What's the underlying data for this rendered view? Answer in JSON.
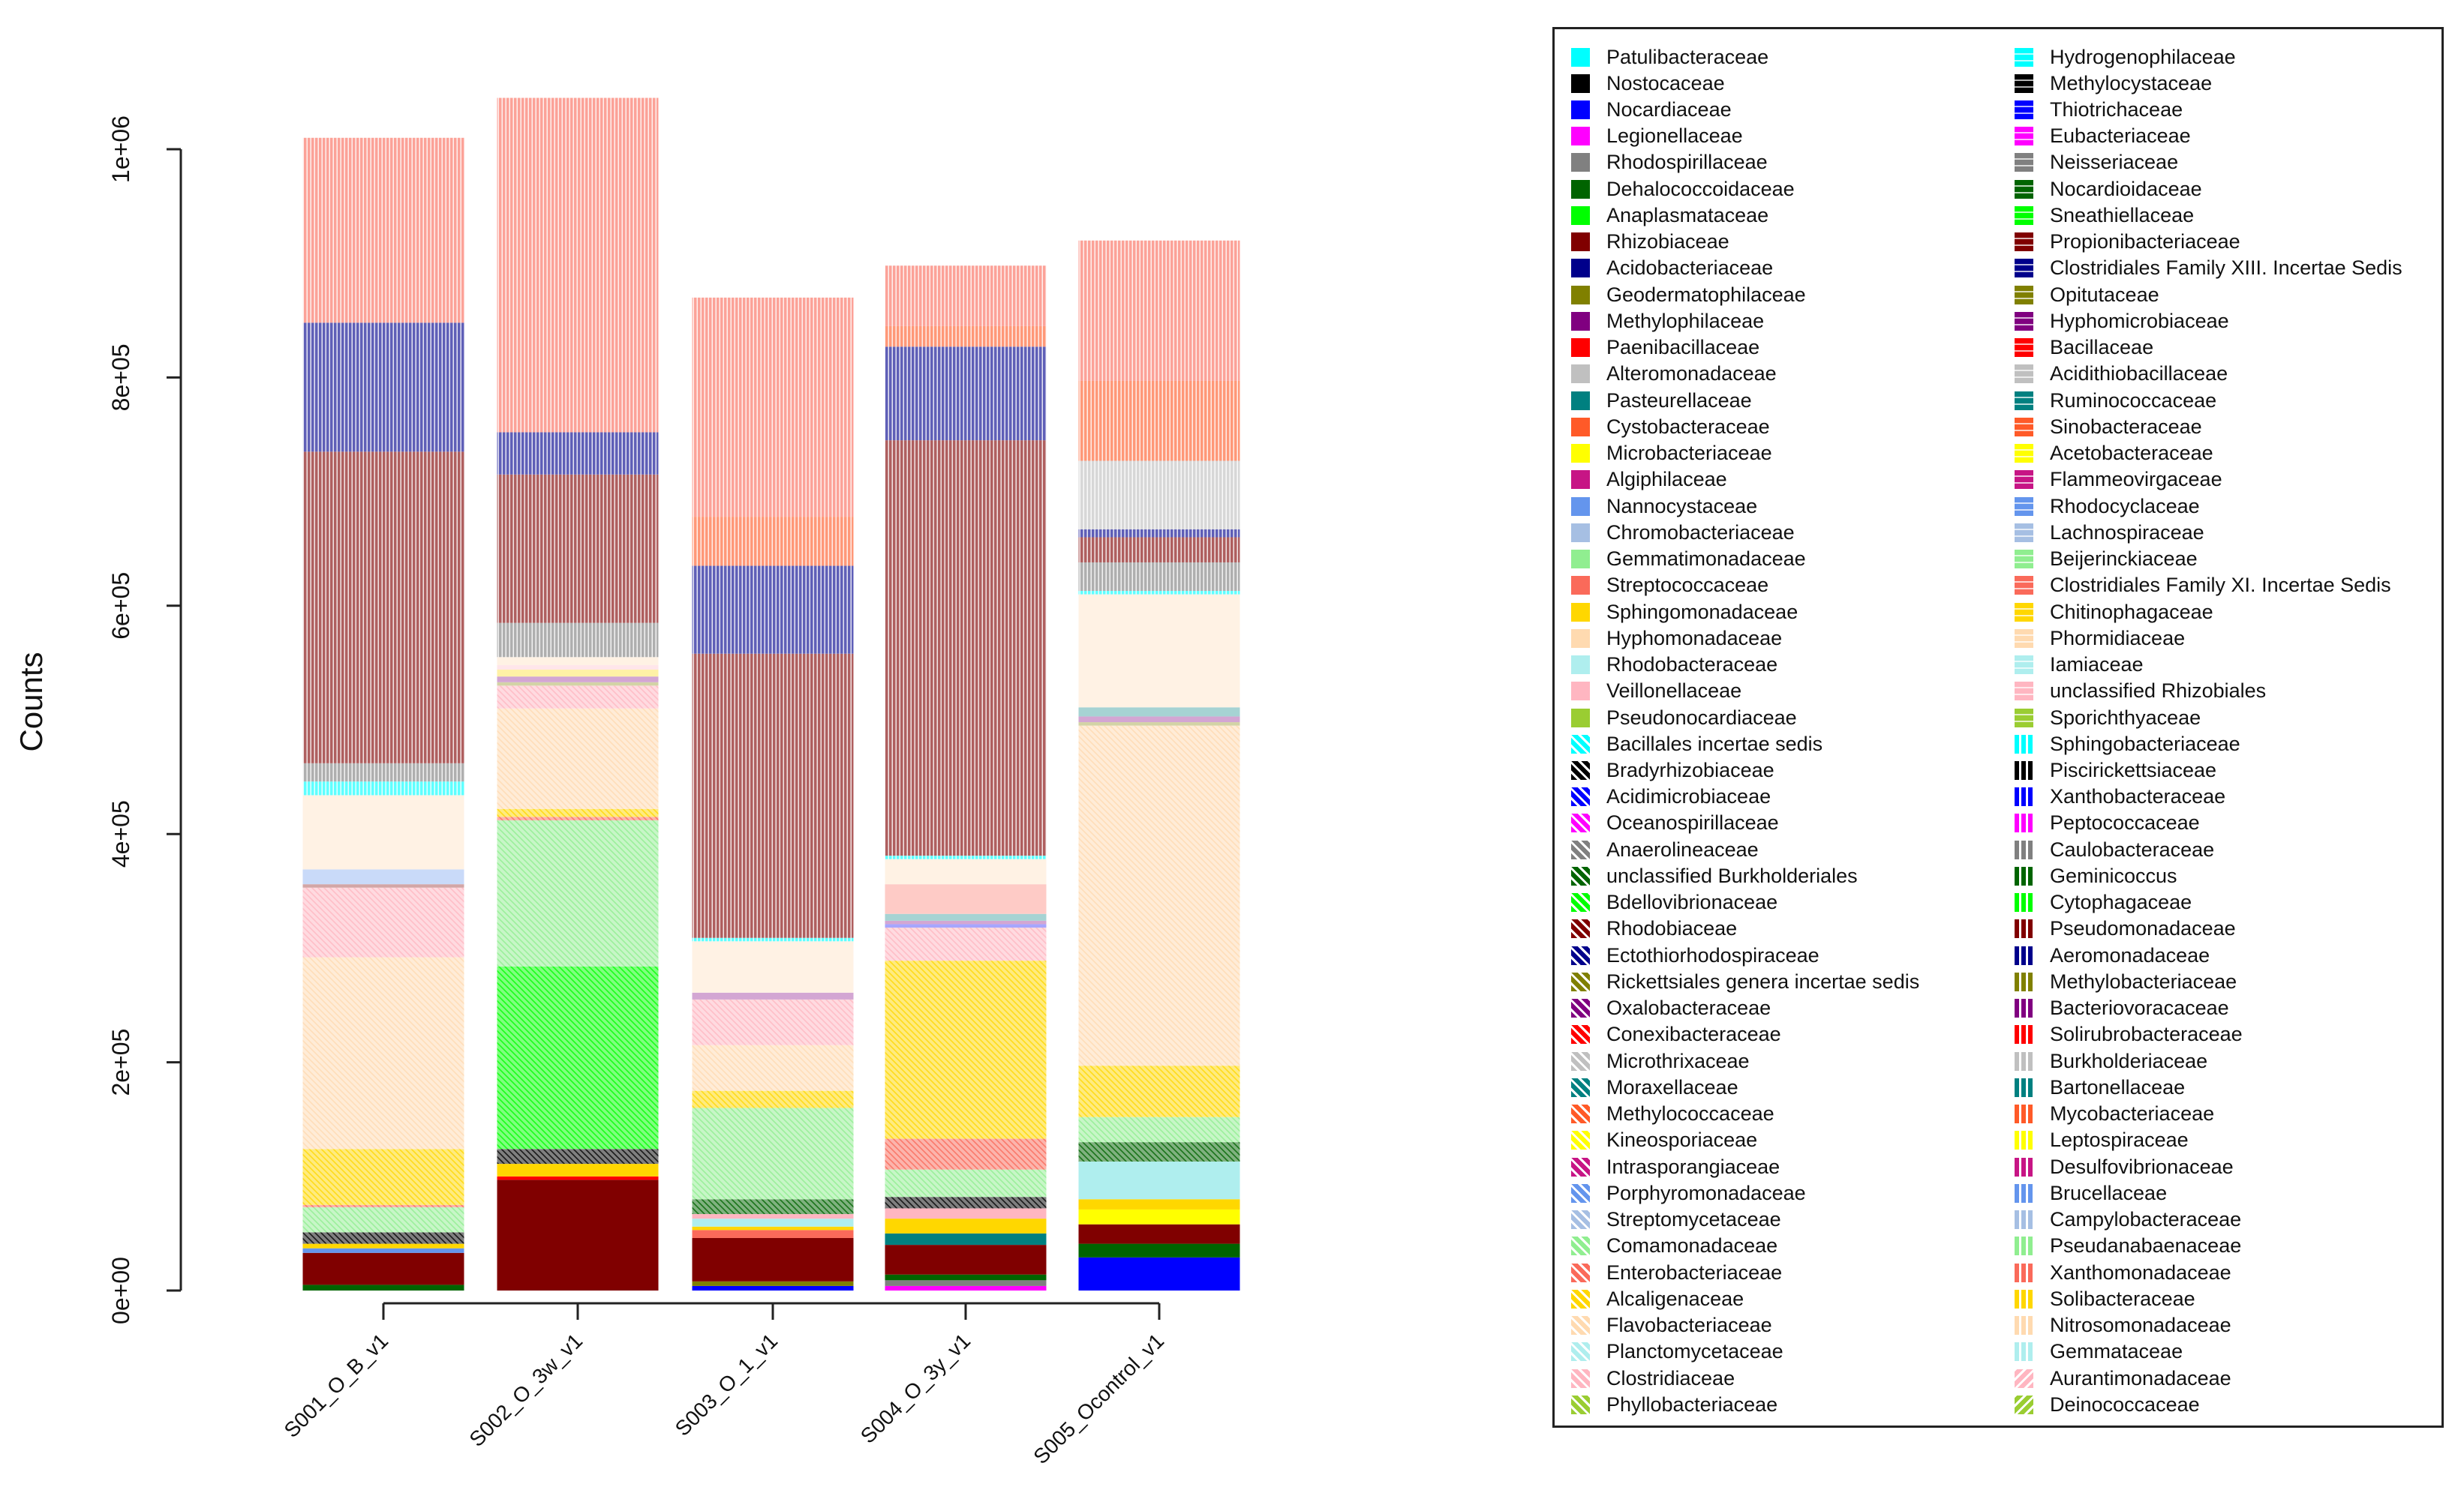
{
  "palette": [
    "#00FFFF",
    "#000000",
    "#0000FF",
    "#FF00FF",
    "#808080",
    "#006400",
    "#00FF00",
    "#800000",
    "#00008B",
    "#808000",
    "#800080",
    "#FF0000",
    "#C0C0C0",
    "#008080",
    "#FF5A28",
    "#FFFF00",
    "#C71585",
    "#6495ED",
    "#A6BFE3",
    "#90EE90",
    "#FA6A5A",
    "#FFD700",
    "#FFDAB0",
    "#AFEEEE",
    "#FFB6C1",
    "#9ACD32"
  ],
  "legend": {
    "col1": [
      "Patulibacteraceae",
      "Nostocaceae",
      "Nocardiaceae",
      "Legionellaceae",
      "Rhodospirillaceae",
      "Dehalococcoidaceae",
      "Anaplasmataceae",
      "Rhizobiaceae",
      "Acidobacteriaceae",
      "Geodermatophilaceae",
      "Methylophilaceae",
      "Paenibacillaceae",
      "Alteromonadaceae",
      "Pasteurellaceae",
      "Cystobacteraceae",
      "Microbacteriaceae",
      "Algiphilaceae",
      "Nannocystaceae",
      "Chromobacteriaceae",
      "Gemmatimonadaceae",
      "Streptococcaceae",
      "Sphingomonadaceae",
      "Hyphomonadaceae",
      "Rhodobacteraceae",
      "Veillonellaceae",
      "Pseudonocardiaceae",
      "Bacillales incertae sedis",
      "Bradyrhizobiaceae",
      "Acidimicrobiaceae",
      "Oceanospirillaceae",
      "Anaerolineaceae",
      "unclassified Burkholderiales",
      "Bdellovibrionaceae",
      "Rhodobiaceae",
      "Ectothiorhodospiraceae",
      "Rickettsiales genera incertae sedis",
      "Oxalobacteraceae",
      "Conexibacteraceae",
      "Microthrixaceae",
      "Moraxellaceae",
      "Methylococcaceae",
      "Kineosporiaceae",
      "Intrasporangiaceae",
      "Porphyromonadaceae",
      "Streptomycetaceae",
      "Comamonadaceae",
      "Enterobacteriaceae",
      "Alcaligenaceae",
      "Flavobacteriaceae",
      "Planctomycetaceae",
      "Clostridiaceae",
      "Phyllobacteriaceae"
    ],
    "col2": [
      "Hydrogenophilaceae",
      "Methylocystaceae",
      "Thiotrichaceae",
      "Eubacteriaceae",
      "Neisseriaceae",
      "Nocardioidaceae",
      "Sneathiellaceae",
      "Propionibacteriaceae",
      "Clostridiales Family XIII. Incertae Sedis",
      "Opitutaceae",
      "Hyphomicrobiaceae",
      "Bacillaceae",
      "Acidithiobacillaceae",
      "Ruminococcaceae",
      "Sinobacteraceae",
      "Acetobacteraceae",
      "Flammeovirgaceae",
      "Rhodocyclaceae",
      "Lachnospiraceae",
      "Beijerinckiaceae",
      "Clostridiales Family XI. Incertae Sedis",
      "Chitinophagaceae",
      "Phormidiaceae",
      "Iamiaceae",
      "unclassified Rhizobiales",
      "Sporichthyaceae",
      "Sphingobacteriaceae",
      "Piscirickettsiaceae",
      "Xanthobacteraceae",
      "Peptococcaceae",
      "Caulobacteraceae",
      "Geminicoccus",
      "Cytophagaceae",
      "Pseudomonadaceae",
      "Aeromonadaceae",
      "Methylobacteriaceae",
      "Bacteriovoracaceae",
      "Solirubrobacteraceae",
      "Burkholderiaceae",
      "Bartonellaceae",
      "Mycobacteriaceae",
      "Leptospiraceae",
      "Desulfovibrionaceae",
      "Brucellaceae",
      "Campylobacteraceae",
      "Pseudanabaenaceae",
      "Xanthomonadaceae",
      "Solibacteraceae",
      "Nitrosomonadaceae",
      "Gemmataceae",
      "Aurantimonadaceae",
      "Deinococcaceae"
    ]
  },
  "chart_data": {
    "type": "bar",
    "stacked": true,
    "title": "",
    "xlabel": "",
    "ylabel": "Counts",
    "ylim": [
      0,
      1050000
    ],
    "yticks": [
      {
        "value": 0,
        "label": "0e+00"
      },
      {
        "value": 200000,
        "label": "2e+05"
      },
      {
        "value": 400000,
        "label": "4e+05"
      },
      {
        "value": 600000,
        "label": "6e+05"
      },
      {
        "value": 800000,
        "label": "8e+05"
      },
      {
        "value": 1000000,
        "label": "1e+06"
      }
    ],
    "legend_position": "right",
    "categories": [
      "S001_O_B_v1",
      "S002_O_3w_v1",
      "S003_O_1_v1",
      "S004_O_3y_v1",
      "S005_Ocontrol_v1"
    ],
    "bars": [
      {
        "sample": "S001_O_B_v1",
        "segments": [
          {
            "taxon": "Dehalococcoidaceae",
            "value": 5000
          },
          {
            "taxon": "Rhizobiaceae",
            "value": 28000
          },
          {
            "taxon": "Nannocystaceae",
            "value": 4000
          },
          {
            "taxon": "Sphingomonadaceae",
            "value": 4000
          },
          {
            "taxon": "Bradyrhizobiaceae",
            "value": 10000
          },
          {
            "taxon": "Comamonadaceae",
            "value": 22000
          },
          {
            "taxon": "Enterobacteriaceae",
            "value": 2000
          },
          {
            "taxon": "Alcaligenaceae",
            "value": 49000
          },
          {
            "taxon": "Flavobacteriaceae",
            "value": 168000
          },
          {
            "taxon": "Clostridiaceae",
            "value": 61000
          },
          {
            "taxon": "Propionibacteriaceae",
            "value": 3000
          },
          {
            "taxon": "Rhodocyclaceae",
            "value": 13000
          },
          {
            "taxon": "Phormidiaceae",
            "value": 65000
          },
          {
            "taxon": "Sphingobacteriaceae",
            "value": 12000
          },
          {
            "taxon": "Caulobacteraceae",
            "value": 16000
          },
          {
            "taxon": "Pseudomonadaceae",
            "value": 273000
          },
          {
            "taxon": "Aeromonadaceae",
            "value": 113000
          },
          {
            "taxon": "Xanthomonadaceae",
            "value": 162000
          }
        ]
      },
      {
        "sample": "S002_O_3w_v1",
        "segments": [
          {
            "taxon": "Rhizobiaceae",
            "value": 97000
          },
          {
            "taxon": "Paenibacillaceae",
            "value": 3000
          },
          {
            "taxon": "Sphingomonadaceae",
            "value": 11000
          },
          {
            "taxon": "Bradyrhizobiaceae",
            "value": 13000
          },
          {
            "taxon": "Bdellovibrionaceae",
            "value": 160000
          },
          {
            "taxon": "Comamonadaceae",
            "value": 128000
          },
          {
            "taxon": "Enterobacteriaceae",
            "value": 3000
          },
          {
            "taxon": "Alcaligenaceae",
            "value": 7000
          },
          {
            "taxon": "Flavobacteriaceae",
            "value": 88000
          },
          {
            "taxon": "Clostridiaceae",
            "value": 20000
          },
          {
            "taxon": "Opitutaceae",
            "value": 3000
          },
          {
            "taxon": "Hyphomicrobiaceae",
            "value": 5000
          },
          {
            "taxon": "Chitinophagaceae",
            "value": 6000
          },
          {
            "taxon": "unclassified Rhizobiales",
            "value": 4000
          },
          {
            "taxon": "Phormidiaceae",
            "value": 7000
          },
          {
            "taxon": "Caulobacteraceae",
            "value": 30000
          },
          {
            "taxon": "Pseudomonadaceae",
            "value": 130000
          },
          {
            "taxon": "Aeromonadaceae",
            "value": 37000
          },
          {
            "taxon": "Xanthomonadaceae",
            "value": 293000
          }
        ]
      },
      {
        "sample": "S003_O_1_v1",
        "segments": [
          {
            "taxon": "Nocardiaceae",
            "value": 4000
          },
          {
            "taxon": "Geodermatophilaceae",
            "value": 4000
          },
          {
            "taxon": "Rhizobiaceae",
            "value": 38000
          },
          {
            "taxon": "Streptococcaceae",
            "value": 7000
          },
          {
            "taxon": "Sphingomonadaceae",
            "value": 3000
          },
          {
            "taxon": "Rhodobacteraceae",
            "value": 7000
          },
          {
            "taxon": "Veillonellaceae",
            "value": 4000
          },
          {
            "taxon": "unclassified Burkholderiales",
            "value": 13000
          },
          {
            "taxon": "Comamonadaceae",
            "value": 80000
          },
          {
            "taxon": "Alcaligenaceae",
            "value": 15000
          },
          {
            "taxon": "Flavobacteriaceae",
            "value": 40000
          },
          {
            "taxon": "Clostridiaceae",
            "value": 40000
          },
          {
            "taxon": "Hyphomicrobiaceae",
            "value": 6000
          },
          {
            "taxon": "Phormidiaceae",
            "value": 45000
          },
          {
            "taxon": "Sphingobacteriaceae",
            "value": 3000
          },
          {
            "taxon": "Pseudomonadaceae",
            "value": 249000
          },
          {
            "taxon": "Aeromonadaceae",
            "value": 77000
          },
          {
            "taxon": "Mycobacteriaceae",
            "value": 43000
          },
          {
            "taxon": "Xanthomonadaceae",
            "value": 192000
          }
        ]
      },
      {
        "sample": "S004_O_3y_v1",
        "segments": [
          {
            "taxon": "Legionellaceae",
            "value": 4000
          },
          {
            "taxon": "Rhodospirillaceae",
            "value": 5000
          },
          {
            "taxon": "Dehalococcoidaceae",
            "value": 5000
          },
          {
            "taxon": "Rhizobiaceae",
            "value": 26000
          },
          {
            "taxon": "Pasteurellaceae",
            "value": 10000
          },
          {
            "taxon": "Sphingomonadaceae",
            "value": 13000
          },
          {
            "taxon": "Veillonellaceae",
            "value": 9000
          },
          {
            "taxon": "Bradyrhizobiaceae",
            "value": 10000
          },
          {
            "taxon": "Comamonadaceae",
            "value": 24000
          },
          {
            "taxon": "Enterobacteriaceae",
            "value": 27000
          },
          {
            "taxon": "Alcaligenaceae",
            "value": 156000
          },
          {
            "taxon": "Clostridiaceae",
            "value": 29000
          },
          {
            "taxon": "Thiotrichaceae",
            "value": 3000
          },
          {
            "taxon": "Hyphomicrobiaceae",
            "value": 3000
          },
          {
            "taxon": "Ruminococcaceae",
            "value": 6000
          },
          {
            "taxon": "Clostridiales Family XI. Incertae Sedis",
            "value": 26000
          },
          {
            "taxon": "Phormidiaceae",
            "value": 22000
          },
          {
            "taxon": "Sphingobacteriaceae",
            "value": 3000
          },
          {
            "taxon": "Pseudomonadaceae",
            "value": 364000
          },
          {
            "taxon": "Aeromonadaceae",
            "value": 82000
          },
          {
            "taxon": "Mycobacteriaceae",
            "value": 18000
          },
          {
            "taxon": "Xanthomonadaceae",
            "value": 53000
          }
        ]
      },
      {
        "sample": "S005_Ocontrol_v1",
        "segments": [
          {
            "taxon": "Nocardiaceae",
            "value": 29000
          },
          {
            "taxon": "Dehalococcoidaceae",
            "value": 12000
          },
          {
            "taxon": "Rhizobiaceae",
            "value": 17000
          },
          {
            "taxon": "Microbacteriaceae",
            "value": 13000
          },
          {
            "taxon": "Sphingomonadaceae",
            "value": 9000
          },
          {
            "taxon": "Rhodobacteraceae",
            "value": 33000
          },
          {
            "taxon": "unclassified Burkholderiales",
            "value": 17000
          },
          {
            "taxon": "Comamonadaceae",
            "value": 22000
          },
          {
            "taxon": "Alcaligenaceae",
            "value": 45000
          },
          {
            "taxon": "Flavobacteriaceae",
            "value": 298000
          },
          {
            "taxon": "Opitutaceae",
            "value": 3000
          },
          {
            "taxon": "Hyphomicrobiaceae",
            "value": 5000
          },
          {
            "taxon": "Ruminococcaceae",
            "value": 8000
          },
          {
            "taxon": "Phormidiaceae",
            "value": 99000
          },
          {
            "taxon": "Sphingobacteriaceae",
            "value": 3000
          },
          {
            "taxon": "Caulobacteraceae",
            "value": 25000
          },
          {
            "taxon": "Pseudomonadaceae",
            "value": 22000
          },
          {
            "taxon": "Aeromonadaceae",
            "value": 7000
          },
          {
            "taxon": "Burkholderiaceae",
            "value": 60000
          },
          {
            "taxon": "Mycobacteriaceae",
            "value": 70000
          },
          {
            "taxon": "Xanthomonadaceae",
            "value": 123000
          }
        ]
      }
    ]
  }
}
